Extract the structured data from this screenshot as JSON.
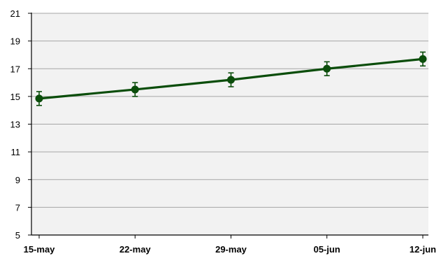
{
  "chart_data": {
    "type": "line",
    "title": "",
    "xlabel": "",
    "ylabel": "",
    "categories": [
      "15-may",
      "22-may",
      "29-may",
      "05-jun",
      "12-jun"
    ],
    "yticks": [
      "5",
      "7",
      "9",
      "11",
      "13",
      "15",
      "17",
      "19",
      "21"
    ],
    "ylim": [
      5,
      21
    ],
    "grid": true,
    "legend": "none",
    "series": [
      {
        "values": [
          14.85,
          15.5,
          16.2,
          17.0,
          17.7
        ],
        "error": [
          0.5,
          0.5,
          0.5,
          0.5,
          0.5
        ],
        "color": "#0b4d0b"
      }
    ],
    "plot_background": "#f2f2f2",
    "gridline_color": "#a6a6a6"
  }
}
